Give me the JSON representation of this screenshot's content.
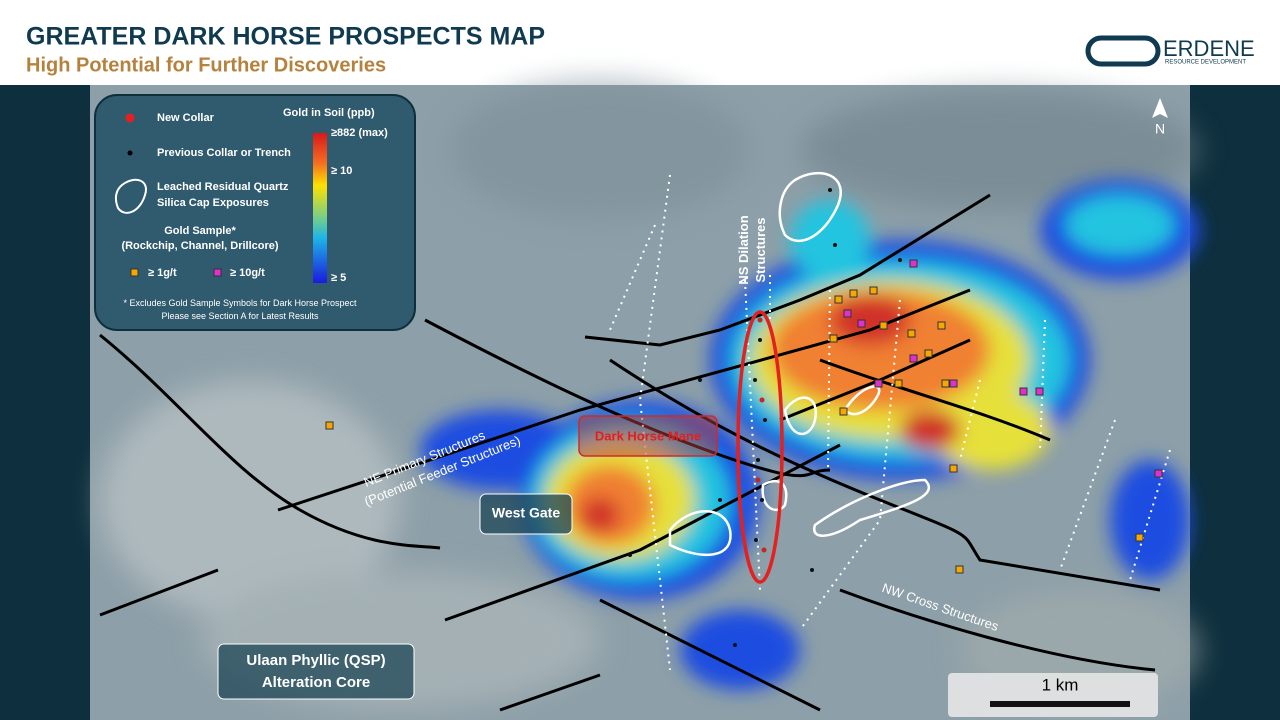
{
  "header": {
    "title": "GREATER DARK HORSE PROSPECTS MAP",
    "subtitle": "High Potential for Further Discoveries",
    "logo": {
      "name": "ERDENE",
      "tagline": "RESOURCE DEVELOPMENT"
    }
  },
  "legend": {
    "new_collar": "New Collar",
    "previous_collar": "Previous Collar or Trench",
    "silica_cap": [
      "Leached Residual Quartz",
      "Silica Cap Exposures"
    ],
    "gold_sample": [
      "Gold Sample*",
      "(Rockchip, Channel, Drillcore)"
    ],
    "sample_1g": "≥ 1g/t",
    "sample_10g": "≥ 10g/t",
    "soil_title": "Gold in Soil (ppb)",
    "soil_max": "≥882 (max)",
    "soil_mid": "≥ 10",
    "soil_min": "≥ 5",
    "footnote": [
      "* Excludes Gold Sample Symbols for Dark Horse Prospect",
      "Please see Section A for Latest Results"
    ]
  },
  "map": {
    "north": "N",
    "ns_dilation": [
      "NS Dilation",
      "Structures"
    ],
    "dark_horse_mane": "Dark Horse Mane",
    "west_gate": "West Gate",
    "ne_primary": [
      "NE Primary Structures",
      "(Potential Feeder Structures)"
    ],
    "nw_cross": "NW Cross Structures",
    "ulaan": [
      "Ulaan Phyllic (QSP)",
      "Alteration Core"
    ],
    "scale": "1 km"
  }
}
